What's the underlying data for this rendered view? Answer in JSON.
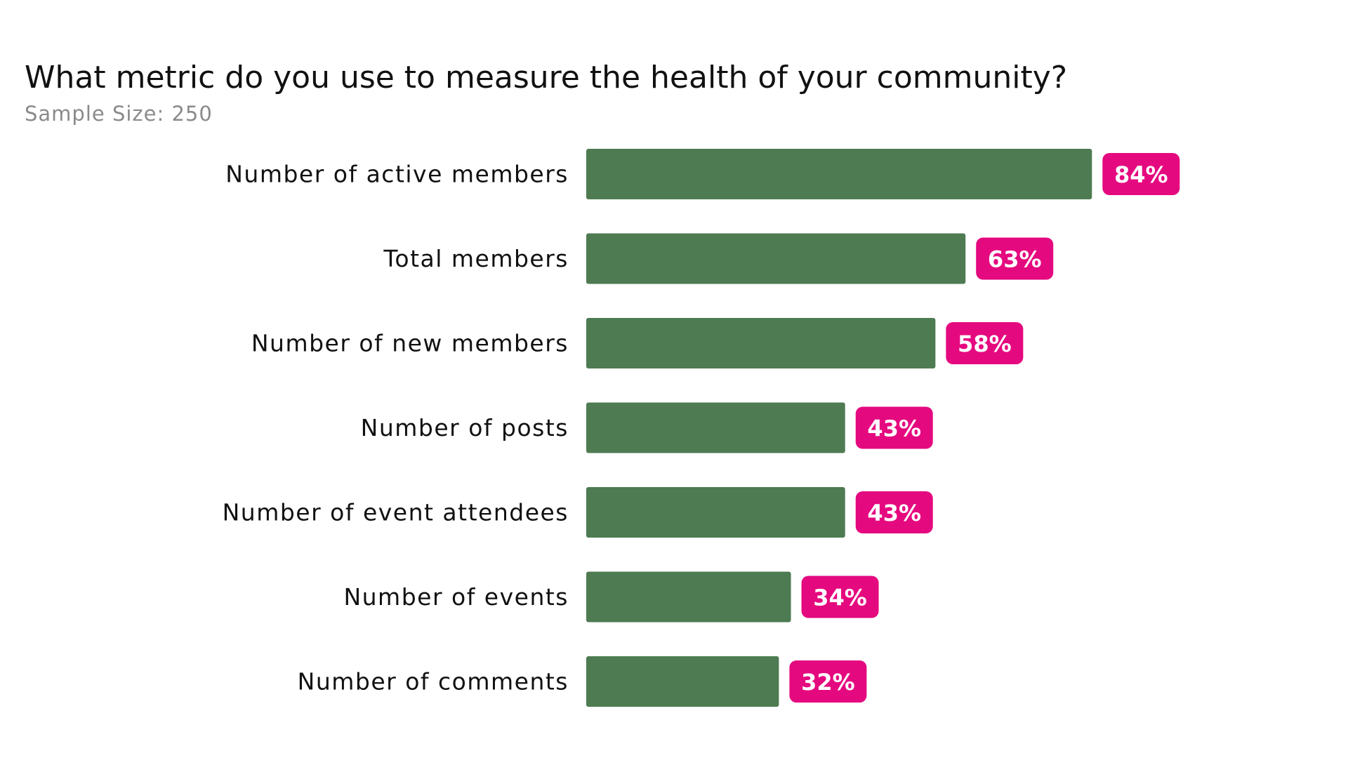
{
  "chart_data": {
    "type": "bar",
    "orientation": "horizontal",
    "title": "What metric do you use to measure the health of your community?",
    "subtitle": "Sample Size: 250",
    "categories": [
      "Number of active members",
      "Total members",
      "Number of new members",
      "Number of posts",
      "Number of event attendees",
      "Number of events",
      "Number of comments"
    ],
    "values": [
      84,
      63,
      58,
      43,
      43,
      34,
      32
    ],
    "value_labels": [
      "84%",
      "63%",
      "58%",
      "43%",
      "43%",
      "34%",
      "32%"
    ],
    "xlim": [
      0,
      100
    ],
    "grid": false,
    "bar_color": "#4e7b52",
    "label_color": "#e5097f"
  }
}
